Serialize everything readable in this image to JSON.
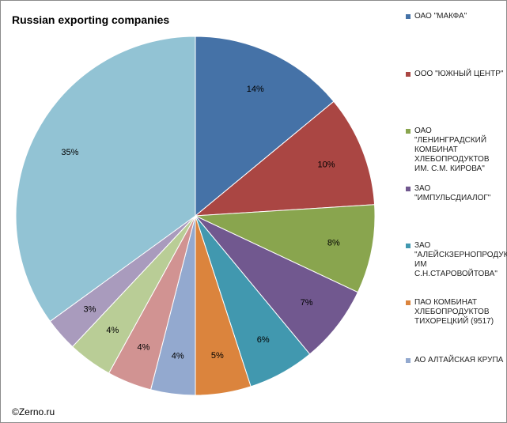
{
  "chart_data": {
    "type": "pie",
    "title": "Russian exporting companies",
    "start_angle_deg": 0,
    "direction": "clockwise",
    "legend_position": "right",
    "slices": [
      {
        "label": "ОАО \"МАКФА\"",
        "value": 14,
        "value_label": "14%",
        "color": "#4572a7"
      },
      {
        "label": "ООО \"ЮЖНЫЙ ЦЕНТР\"",
        "value": 10,
        "value_label": "10%",
        "color": "#aa4643"
      },
      {
        "label": "ОАО \"ЛЕНИНГРАДСКИЙ КОМБИНАТ ХЛЕБОПРОДУКТОВ ИМ. С.М. КИРОВА\"",
        "value": 8,
        "value_label": "8%",
        "color": "#89a54e"
      },
      {
        "label": "ЗАО \"ИМПУЛЬСДИАЛОГ\"",
        "value": 7,
        "value_label": "7%",
        "color": "#71588f"
      },
      {
        "label": "ЗАО \"АЛЕЙСКЗЕРНОПРОДУКТ ИМ С.Н.СТАРОВОЙТОВА\"",
        "value": 6,
        "value_label": "6%",
        "color": "#4198af"
      },
      {
        "label": "ПАО КОМБИНАТ ХЛЕБОПРОДУКТОВ ТИХОРЕЦКИЙ (9517)",
        "value": 5,
        "value_label": "5%",
        "color": "#db843d"
      },
      {
        "label": "АО АЛТАЙСКАЯ КРУПА",
        "value": 4,
        "value_label": "4%",
        "color": "#93a9cf"
      },
      {
        "label": "",
        "value": 4,
        "value_label": "4%",
        "color": "#d19392"
      },
      {
        "label": "",
        "value": 4,
        "value_label": "4%",
        "color": "#b9cd96"
      },
      {
        "label": "",
        "value": 3,
        "value_label": "3%",
        "color": "#a99bbd"
      },
      {
        "label": "",
        "value": 35,
        "value_label": "35%",
        "color": "#92c3d4"
      }
    ]
  },
  "watermark": "©Zerno.ru"
}
